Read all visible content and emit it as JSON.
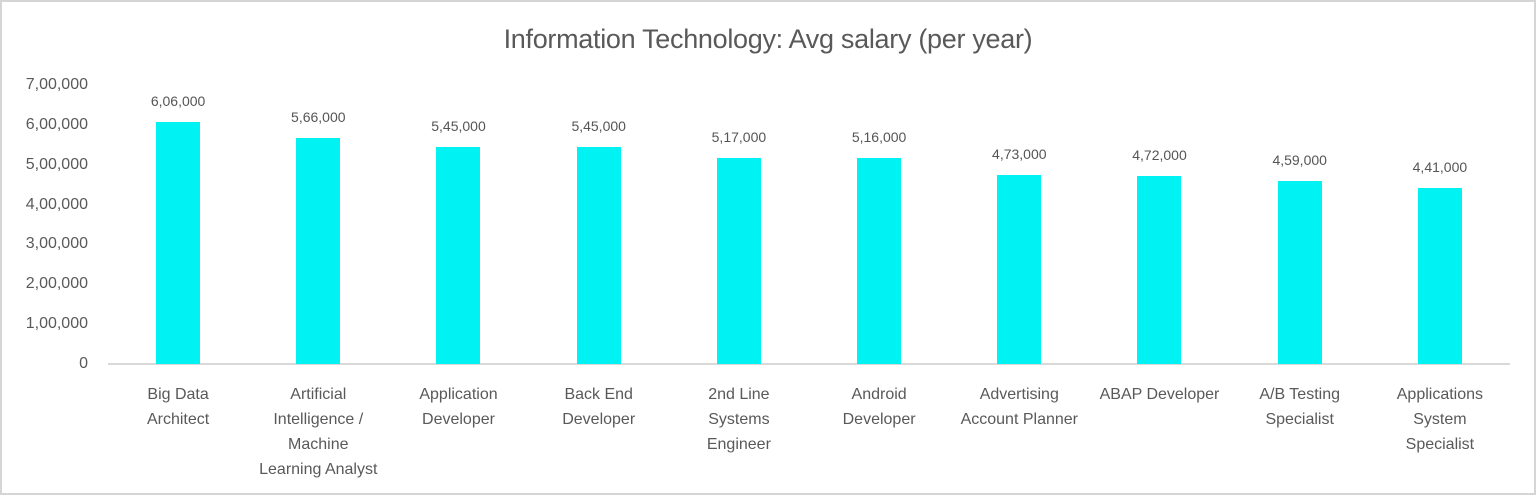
{
  "window": {
    "background": "#ffffff",
    "border_color": "#d5d5d5"
  },
  "chart_data": {
    "type": "bar",
    "title": "Information Technology: Avg salary (per year)",
    "categories": [
      "Big Data Architect",
      "Artificial Intelligence / Machine Learning Analyst",
      "Application Developer",
      "Back End Developer",
      "2nd Line Systems Engineer",
      "Android Developer",
      "Advertising Account Planner",
      "ABAP Developer",
      "A/B Testing Specialist",
      "Applications System Specialist"
    ],
    "category_label_lines": [
      "Big Data\nArchitect",
      "Artificial\nIntelligence /\nMachine\nLearning Analyst",
      "Application\nDeveloper",
      "Back End\nDeveloper",
      "2nd Line\nSystems\nEngineer",
      "Android\nDeveloper",
      "Advertising\nAccount Planner",
      "ABAP Developer",
      "A/B Testing\nSpecialist",
      "Applications\nSystem\nSpecialist"
    ],
    "values": [
      606000,
      566000,
      545000,
      545000,
      517000,
      516000,
      473000,
      472000,
      459000,
      441000
    ],
    "value_labels": [
      "6,06,000",
      "5,66,000",
      "5,45,000",
      "5,45,000",
      "5,17,000",
      "5,16,000",
      "4,73,000",
      "4,72,000",
      "4,59,000",
      "4,41,000"
    ],
    "xlabel": "",
    "ylabel": "",
    "y_axis": {
      "min": 0,
      "max": 700000,
      "tick_interval": 100000,
      "tick_labels": [
        "0",
        "1,00,000",
        "2,00,000",
        "3,00,000",
        "4,00,000",
        "5,00,000",
        "6,00,000",
        "7,00,000"
      ]
    },
    "legend_position": "none",
    "grid": false,
    "bar_color": "#00f2f2",
    "axis_line_color": "#d9d9d9",
    "title_color": "#595959",
    "label_color": "#595959"
  }
}
